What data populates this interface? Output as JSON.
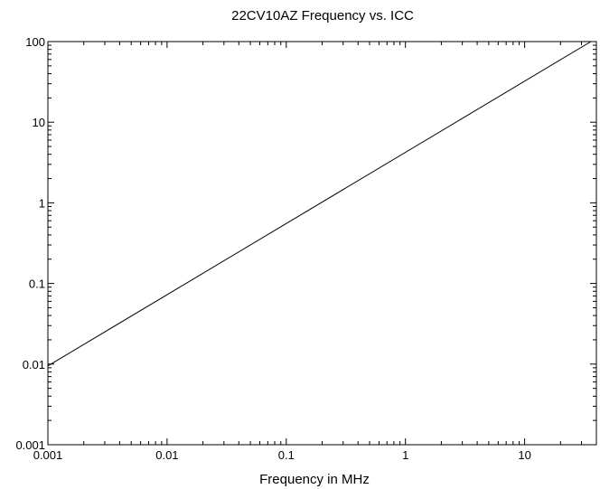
{
  "chart_data": {
    "type": "line",
    "title": "22CV10AZ Frequency vs. ICC",
    "xlabel": "Frequency in MHz",
    "ylabel": "",
    "x_scale": "log",
    "y_scale": "log",
    "xlim": [
      0.001,
      40
    ],
    "ylim": [
      0.001,
      100
    ],
    "x_ticks": [
      {
        "value": 0.001,
        "label": "0.001"
      },
      {
        "value": 0.01,
        "label": "0.01"
      },
      {
        "value": 0.1,
        "label": "0.1"
      },
      {
        "value": 1,
        "label": "1"
      },
      {
        "value": 10,
        "label": "10"
      }
    ],
    "y_ticks": [
      {
        "value": 0.001,
        "label": "0.001"
      },
      {
        "value": 0.01,
        "label": "0.01"
      },
      {
        "value": 0.1,
        "label": "0.1"
      },
      {
        "value": 1,
        "label": "1"
      },
      {
        "value": 10,
        "label": "10"
      },
      {
        "value": 100,
        "label": "100"
      }
    ],
    "grid": false,
    "legend": "none",
    "line_color": "#000000",
    "series": [
      {
        "x": [
          0.001,
          36
        ],
        "y": [
          0.0095,
          100
        ]
      }
    ]
  }
}
